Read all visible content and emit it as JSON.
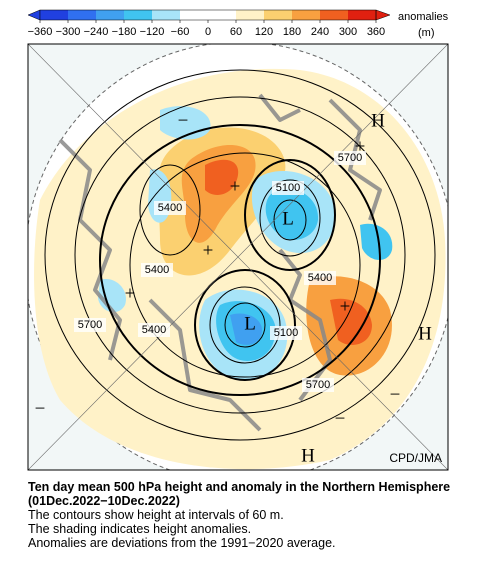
{
  "colorbar": {
    "ticks": [
      "−360",
      "−300",
      "−240",
      "−180",
      "−120",
      "−60",
      "0",
      "60",
      "120",
      "180",
      "240",
      "300",
      "360"
    ],
    "label": "anomalies",
    "unit": "(m)"
  },
  "map": {
    "contour_labels": [
      "5700",
      "5400",
      "5100",
      "5400",
      "5700",
      "5400",
      "5100",
      "5400",
      "5700"
    ],
    "centers": [
      "H",
      "L",
      "L",
      "H",
      "H",
      "+",
      "+",
      "+",
      "+",
      "+",
      "−",
      "−",
      "−",
      "−"
    ],
    "credit": "CPD/JMA"
  },
  "caption": {
    "title": "Ten day mean 500 hPa height and anomaly in the Northern Hemisphere (01Dec.2022−10Dec.2022)",
    "lines": [
      "The contours show height at intervals of 60 m.",
      "The shading indicates height anomalies.",
      "Anomalies are deviations from the 1991−2020 average."
    ]
  }
}
